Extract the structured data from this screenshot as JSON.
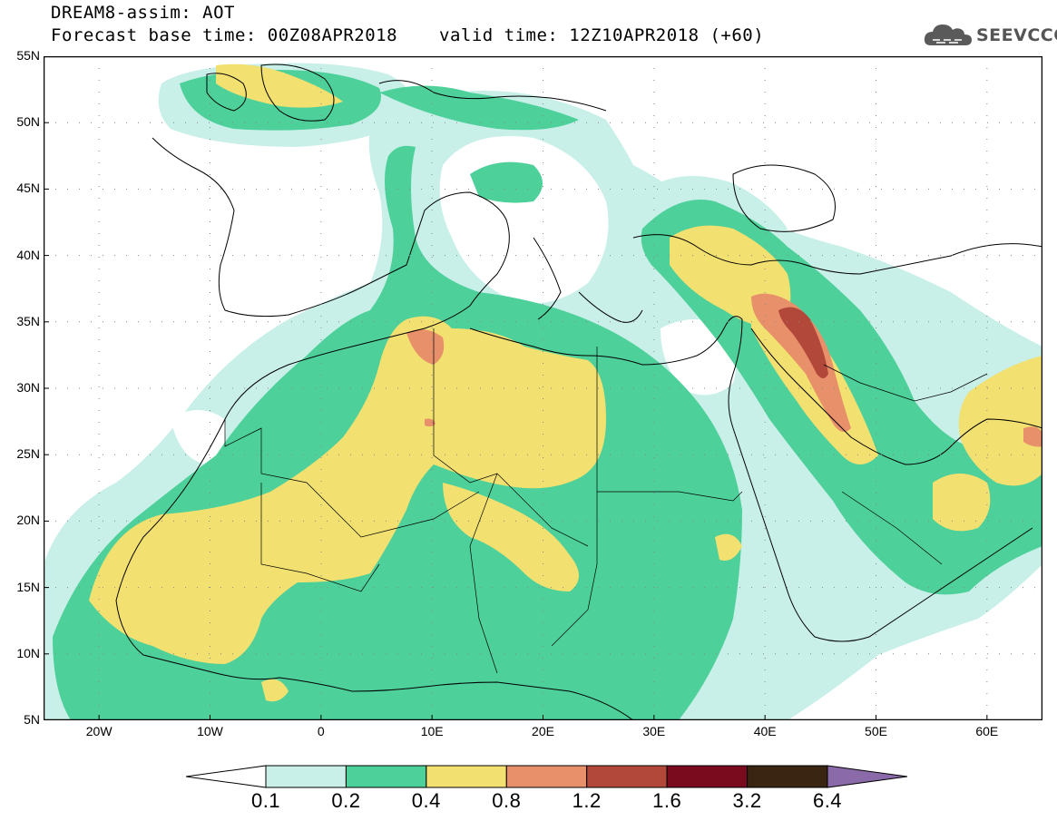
{
  "header": {
    "model_line": "DREAM8-assim: AOT",
    "base_time_line": "Forecast base time: 00Z08APR2018",
    "valid_time_line": "valid time: 12Z10APR2018 (+60)"
  },
  "logo": {
    "text": "SEEVCCC",
    "icon": "cloud-logo-icon"
  },
  "map": {
    "latitude_labels": [
      "55N",
      "50N",
      "45N",
      "40N",
      "35N",
      "30N",
      "25N",
      "20N",
      "15N",
      "10N",
      "5N"
    ],
    "longitude_labels": [
      "20W",
      "10W",
      "0",
      "10E",
      "20E",
      "30E",
      "40E",
      "50E",
      "60E"
    ],
    "extent": {
      "lon_min": -25,
      "lon_max": 65,
      "lat_min": 5,
      "lat_max": 55
    },
    "grid": "dotted"
  },
  "colorbar": {
    "labels": [
      "0.1",
      "0.2",
      "0.4",
      "0.8",
      "1.2",
      "1.6",
      "3.2",
      "6.4"
    ],
    "colors": [
      "#ffffff",
      "#c8efe8",
      "#4dd09a",
      "#f2e070",
      "#e8906a",
      "#b2483a",
      "#7a0a1e",
      "#3a2412",
      "#8a6aa8"
    ]
  }
}
